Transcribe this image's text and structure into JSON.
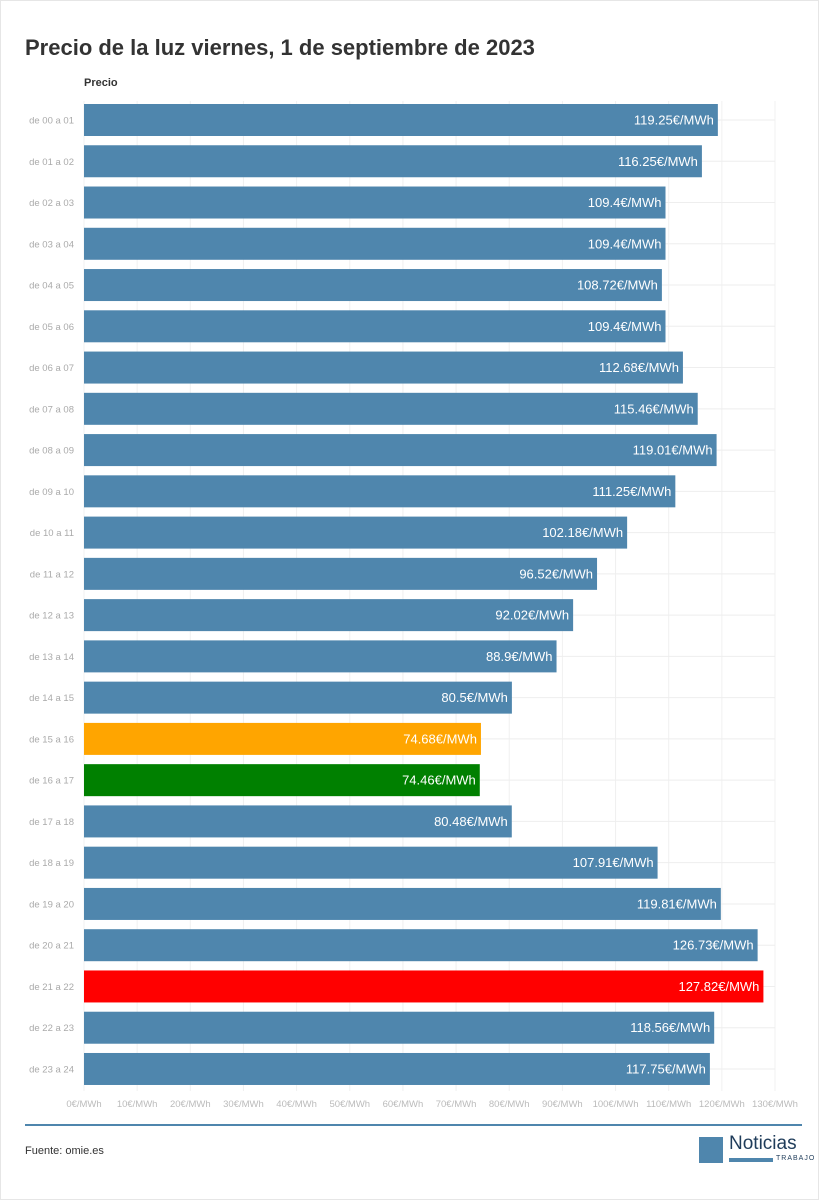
{
  "chart_data": {
    "type": "bar",
    "orientation": "horizontal",
    "title": "Precio de la luz viernes, 1 de septiembre de 2023",
    "series_label": "Precio",
    "categories": [
      "de 00 a 01",
      "de 01 a 02",
      "de 02 a 03",
      "de 03 a 04",
      "de 04 a 05",
      "de 05 a 06",
      "de 06 a 07",
      "de 07 a 08",
      "de 08 a 09",
      "de 09 a 10",
      "de 10 a 11",
      "de 11 a 12",
      "de 12 a 13",
      "de 13 a 14",
      "de 14 a 15",
      "de 15 a 16",
      "de 16 a 17",
      "de 17 a 18",
      "de 18 a 19",
      "de 19 a 20",
      "de 20 a 21",
      "de 21 a 22",
      "de 22 a 23",
      "de 23 a 24"
    ],
    "values": [
      119.25,
      116.25,
      109.4,
      109.4,
      108.72,
      109.4,
      112.68,
      115.46,
      119.01,
      111.25,
      102.18,
      96.52,
      92.02,
      88.9,
      80.5,
      74.68,
      74.46,
      80.48,
      107.91,
      119.81,
      126.73,
      127.82,
      118.56,
      117.75
    ],
    "value_suffix": "€/MWh",
    "xlim": [
      0,
      130
    ],
    "xticks": [
      "0€/MWh",
      "10€/MWh",
      "20€/MWh",
      "30€/MWh",
      "40€/MWh",
      "50€/MWh",
      "60€/MWh",
      "70€/MWh",
      "80€/MWh",
      "90€/MWh",
      "100€/MWh",
      "110€/MWh",
      "120€/MWh",
      "130€/MWh"
    ],
    "grid": true,
    "colors": {
      "default": "#4f86ad",
      "second_lowest": "#ffa500",
      "lowest": "#008000",
      "highest": "#ff0000"
    },
    "highlight": {
      "de 15 a 16": "second_lowest",
      "de 16 a 17": "lowest",
      "de 21 a 22": "highest"
    }
  },
  "footer": {
    "source": "Fuente: omie.es"
  },
  "logo": {
    "name": "Noticias",
    "sub": "TRABAJO"
  }
}
